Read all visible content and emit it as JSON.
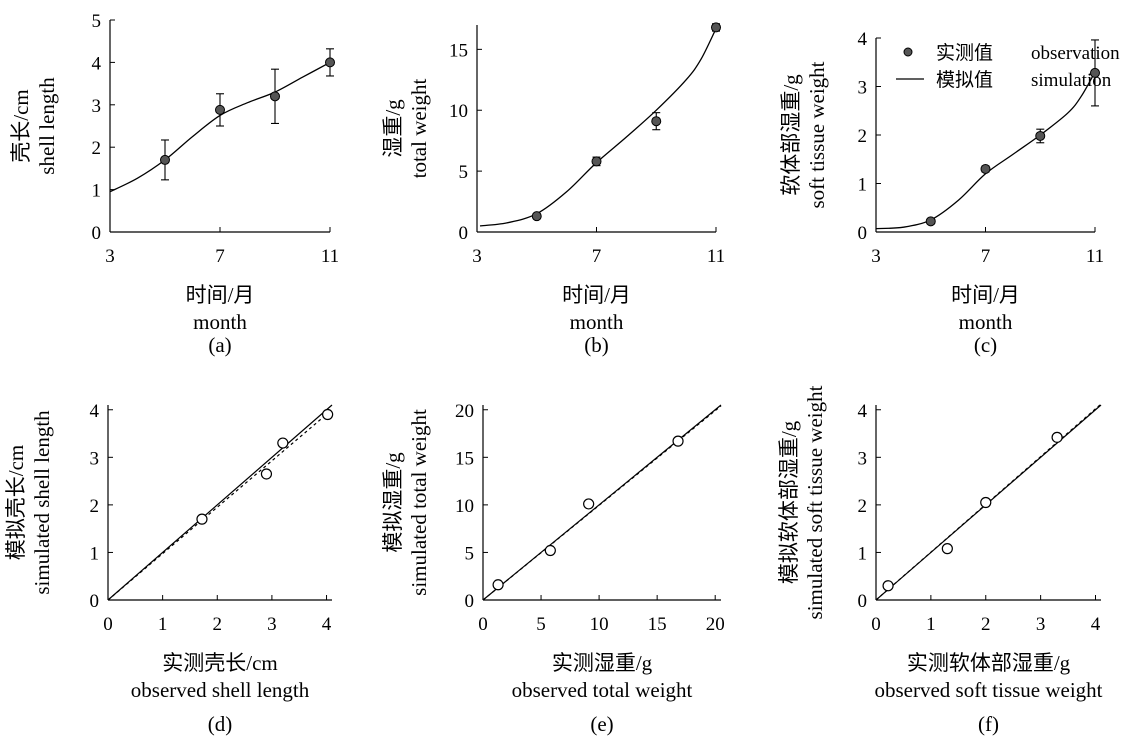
{
  "figure": {
    "colors": {
      "axis": "#000000",
      "series": "#000000",
      "marker_fill": "#555555"
    }
  },
  "chart_data": [
    {
      "panel": "(a)",
      "type": "line",
      "ylabel": [
        "壳长/cm",
        "shell length"
      ],
      "xlabel": [
        "时间/月",
        "month"
      ],
      "xlim": [
        3,
        11
      ],
      "xticks": [
        3,
        7,
        11
      ],
      "ylim": [
        0,
        5
      ],
      "yticks": [
        0,
        1,
        2,
        3,
        4,
        5
      ],
      "series": [
        {
          "role": "simulation",
          "style": "solid",
          "x": [
            3,
            4,
            5,
            6,
            7,
            8,
            9,
            10,
            11
          ],
          "y": [
            0.95,
            1.27,
            1.7,
            2.25,
            2.75,
            3.05,
            3.3,
            3.65,
            4.0
          ]
        },
        {
          "role": "observation",
          "style": "points-errorbar",
          "x": [
            5,
            7,
            9,
            11
          ],
          "y": [
            1.7,
            2.88,
            3.2,
            4.0
          ],
          "err": [
            0.47,
            0.38,
            0.64,
            0.32
          ]
        }
      ]
    },
    {
      "panel": "(b)",
      "type": "line",
      "ylabel": [
        "湿重/g",
        "total weight"
      ],
      "xlabel": [
        "时间/月",
        "month"
      ],
      "xlim": [
        3,
        11
      ],
      "xticks": [
        3,
        7,
        11
      ],
      "ylim": [
        0,
        17
      ],
      "yticks": [
        0,
        5,
        10,
        15
      ],
      "series": [
        {
          "role": "simulation",
          "style": "solid",
          "x": [
            3.1,
            4,
            5,
            6,
            7,
            8,
            9,
            10,
            10.5,
            11
          ],
          "y": [
            0.5,
            0.75,
            1.5,
            3.3,
            5.7,
            7.8,
            10.0,
            12.5,
            14.2,
            16.7
          ]
        },
        {
          "role": "observation",
          "style": "points-errorbar",
          "x": [
            5,
            7,
            9,
            11
          ],
          "y": [
            1.3,
            5.8,
            9.1,
            16.8
          ],
          "err": [
            0.2,
            0.35,
            0.7,
            0.3
          ]
        }
      ]
    },
    {
      "panel": "(c)",
      "type": "line",
      "ylabel": [
        "软体部湿重/g",
        "soft tissue weight"
      ],
      "xlabel": [
        "时间/月",
        "month"
      ],
      "xlim": [
        3,
        11
      ],
      "xticks": [
        3,
        7,
        11
      ],
      "ylim": [
        0,
        4
      ],
      "yticks": [
        0,
        1,
        2,
        3,
        4
      ],
      "legend": {
        "position": "top-right",
        "entries": [
          {
            "cn": "实测值",
            "en": "observation",
            "style": "point"
          },
          {
            "cn": "模拟值",
            "en": "simulation",
            "style": "line"
          }
        ]
      },
      "series": [
        {
          "role": "simulation",
          "style": "solid",
          "x": [
            3,
            4,
            5,
            6,
            7,
            8,
            9,
            10,
            10.5,
            11
          ],
          "y": [
            0.07,
            0.1,
            0.25,
            0.65,
            1.2,
            1.6,
            2.0,
            2.45,
            2.8,
            3.3
          ]
        },
        {
          "role": "observation",
          "style": "points-errorbar",
          "x": [
            5,
            7,
            9,
            11
          ],
          "y": [
            0.22,
            1.3,
            1.98,
            3.28
          ],
          "err": [
            0.05,
            0.06,
            0.14,
            0.68
          ]
        }
      ]
    },
    {
      "panel": "(d)",
      "type": "scatter",
      "ylabel": [
        "模拟壳长/cm",
        "simulated shell length"
      ],
      "xlabel": [
        "实测壳长/cm",
        "observed shell length"
      ],
      "xlim": [
        0,
        4.1
      ],
      "xticks": [
        0,
        1,
        2,
        3,
        4
      ],
      "ylim": [
        0,
        4.1
      ],
      "yticks": [
        0,
        1,
        2,
        3,
        4
      ],
      "points": {
        "x": [
          1.72,
          2.9,
          3.2,
          4.02
        ],
        "y": [
          1.7,
          2.65,
          3.3,
          3.9
        ]
      },
      "lines": [
        {
          "style": "solid",
          "x": [
            0,
            4.1
          ],
          "y": [
            0,
            4.1
          ]
        },
        {
          "style": "dashed",
          "x": [
            0,
            4.1
          ],
          "y": [
            0,
            4.0
          ]
        }
      ]
    },
    {
      "panel": "(e)",
      "type": "scatter",
      "ylabel": [
        "模拟湿重/g",
        "simulated total weight"
      ],
      "xlabel": [
        "实测湿重/g",
        "observed total weight"
      ],
      "xlim": [
        0,
        20.5
      ],
      "xticks": [
        0,
        5,
        10,
        15,
        20
      ],
      "ylim": [
        0,
        20.5
      ],
      "yticks": [
        0,
        5,
        10,
        15,
        20
      ],
      "points": {
        "x": [
          1.3,
          5.8,
          9.1,
          16.8
        ],
        "y": [
          1.6,
          5.2,
          10.1,
          16.7
        ]
      },
      "lines": [
        {
          "style": "solid",
          "x": [
            0,
            20.5
          ],
          "y": [
            0,
            20.5
          ]
        },
        {
          "style": "dashed",
          "x": [
            0,
            20.5
          ],
          "y": [
            0,
            20.4
          ]
        }
      ]
    },
    {
      "panel": "(f)",
      "type": "scatter",
      "ylabel": [
        "模拟软体部湿重/g",
        "simulated soft tissue weight"
      ],
      "xlabel": [
        "实测软体部湿重/g",
        "observed soft tissue weight"
      ],
      "xlim": [
        0,
        4.1
      ],
      "xticks": [
        0,
        1,
        2,
        3,
        4
      ],
      "ylim": [
        0,
        4.1
      ],
      "yticks": [
        0,
        1,
        2,
        3,
        4
      ],
      "points": {
        "x": [
          0.22,
          1.3,
          2.0,
          3.3
        ],
        "y": [
          0.3,
          1.08,
          2.05,
          3.42
        ]
      },
      "lines": [
        {
          "style": "solid",
          "x": [
            0,
            4.1
          ],
          "y": [
            0,
            4.1
          ]
        },
        {
          "style": "dashed",
          "x": [
            0,
            4.1
          ],
          "y": [
            0,
            4.12
          ]
        }
      ]
    }
  ]
}
